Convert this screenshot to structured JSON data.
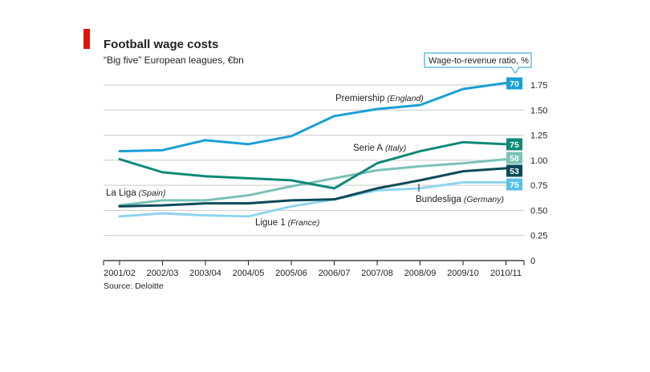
{
  "chart_data": {
    "type": "line",
    "title": "Football wage costs",
    "subtitle": "“Big five” European leagues, €bn",
    "source": "Source: Deloitte",
    "ratio_header": "Wage-to-revenue ratio, %",
    "categories": [
      "2001/02",
      "2002/03",
      "2003/04",
      "2004/05",
      "2005/06",
      "2006/07",
      "2007/08",
      "2008/09",
      "2009/10",
      "2010/11"
    ],
    "ylim": [
      0,
      1.75
    ],
    "yticks": [
      "0",
      "0.25",
      "0.50",
      "0.75",
      "1.00",
      "1.25",
      "1.50",
      "1.75"
    ],
    "grid": true,
    "series": [
      {
        "name": "Premiership",
        "country": "(England)",
        "color": "#1a9fd6",
        "ratio": "70",
        "badge_color": "#1a9fd6",
        "values": [
          1.09,
          1.1,
          1.2,
          1.16,
          1.24,
          1.44,
          1.51,
          1.55,
          1.71,
          1.77
        ]
      },
      {
        "name": "Serie A",
        "country": "(Italy)",
        "color": "#0e8a77",
        "ratio": "75",
        "badge_color": "#0e8a77",
        "values": [
          1.01,
          0.88,
          0.84,
          0.82,
          0.8,
          0.72,
          0.97,
          1.09,
          1.18,
          1.16
        ]
      },
      {
        "name": "La Liga",
        "country": "(Spain)",
        "color": "#7cc2b7",
        "ratio": "58",
        "badge_color": "#7cc2b7",
        "values": [
          0.55,
          0.6,
          0.6,
          0.65,
          0.74,
          0.82,
          0.9,
          0.94,
          0.97,
          1.01
        ]
      },
      {
        "name": "Bundesliga",
        "country": "(Germany)",
        "color": "#0b4a5a",
        "ratio": "53",
        "badge_color": "#0b4a5a",
        "values": [
          0.54,
          0.55,
          0.57,
          0.57,
          0.6,
          0.61,
          0.72,
          0.8,
          0.89,
          0.92
        ]
      },
      {
        "name": "Ligue 1",
        "country": "(France)",
        "color": "#8fd4f2",
        "ratio": "75",
        "badge_color": "#5ac0ea",
        "values": [
          0.44,
          0.47,
          0.45,
          0.44,
          0.54,
          0.61,
          0.7,
          0.72,
          0.78,
          0.78
        ]
      }
    ]
  },
  "colors": {
    "accent_bar": "#e3120b",
    "grid": "#c9c9c9",
    "axis": "#231f20"
  }
}
